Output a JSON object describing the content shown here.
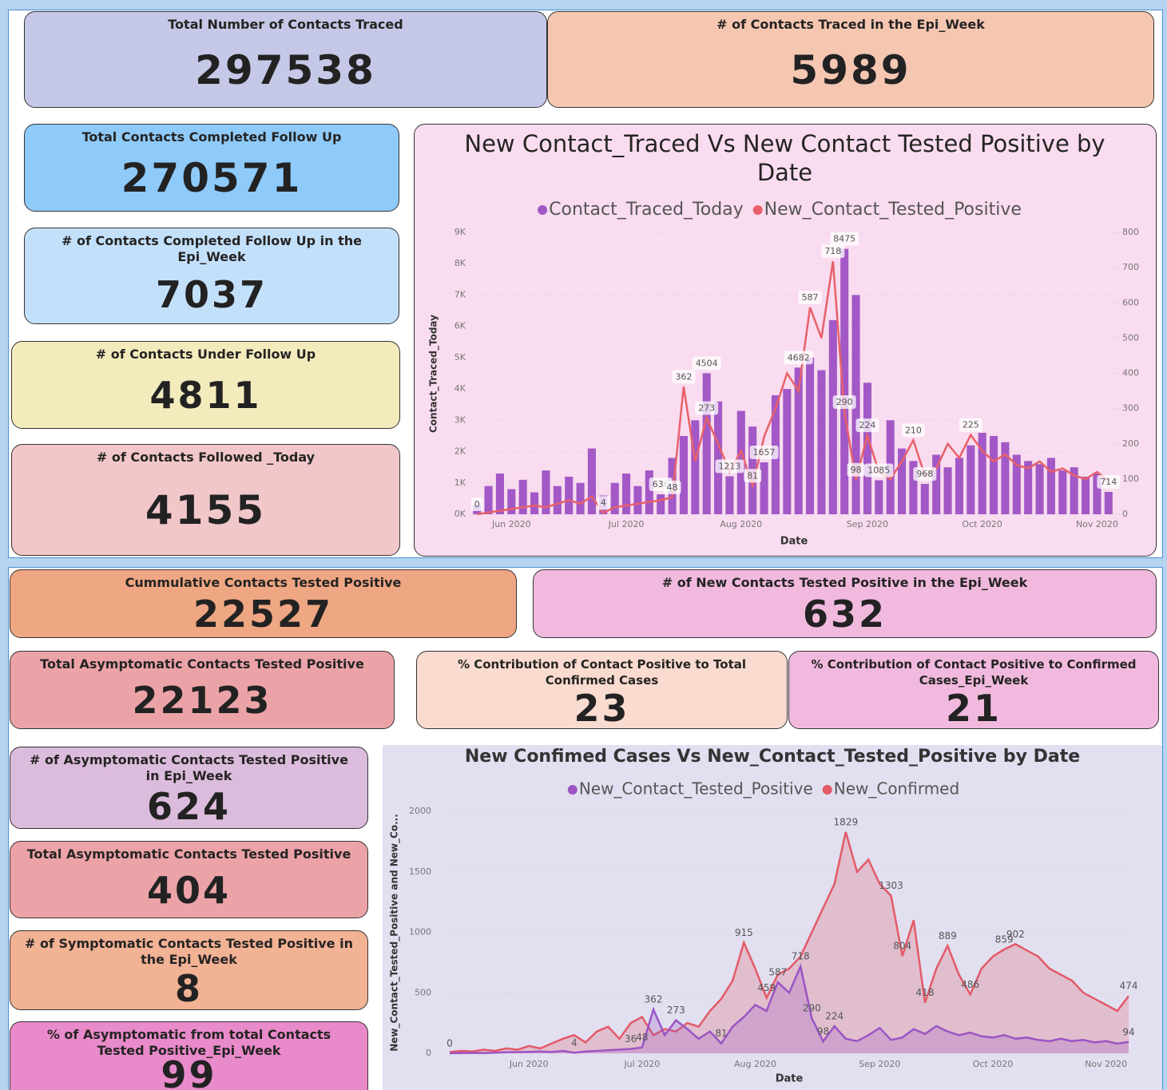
{
  "cards": [
    {
      "title": "Total Number of Contacts Traced",
      "value": 297538
    },
    {
      "title": "# of Contacts Traced in the Epi_Week",
      "value": 5989
    },
    {
      "title": "Total Contacts Completed Follow Up",
      "value": 270571
    },
    {
      "title": "# of Contacts Completed Follow Up in the Epi_Week",
      "value": 7037
    },
    {
      "title": "# of Contacts Under Follow Up",
      "value": 4811
    },
    {
      "title": "# of Contacts Followed _Today",
      "value": 4155
    },
    {
      "title": "Cummulative Contacts Tested Positive",
      "value": 22527
    },
    {
      "title": "# of New Contacts Tested Positive in the Epi_Week",
      "value": 632
    },
    {
      "title": "Total Asymptomatic Contacts Tested Positive",
      "value": 22123
    },
    {
      "title": "% Contribution of Contact Positive to Total Confirmed Cases",
      "value": 23
    },
    {
      "title": "% Contribution of Contact Positive to Confirmed Cases_Epi_Week",
      "value": 21
    },
    {
      "title": "# of Asymptomatic Contacts Tested Positive in Epi_Week",
      "value": 624
    },
    {
      "title": "Total Asymptomatic Contacts Tested Positive",
      "value": 404
    },
    {
      "title": "# of Symptomatic Contacts Tested Positive in the Epi_Week",
      "value": 8
    },
    {
      "title": "% of Asymptomatic from total Contacts Tested Positive_Epi_Week",
      "value": 99
    }
  ],
  "chart_data": [
    {
      "type": "combo",
      "title": "New Contact_Traced Vs New Contact Tested Positive by Date",
      "x_label": "Date",
      "y_label": "Contact_Traced_Today",
      "legend": "top",
      "grid": true,
      "categories": [
        null,
        null,
        null,
        "Jun 2020",
        null,
        null,
        null,
        null,
        null,
        null,
        null,
        null,
        null,
        "Jul 2020",
        null,
        null,
        null,
        null,
        null,
        null,
        null,
        null,
        null,
        "Aug 2020",
        null,
        null,
        null,
        null,
        null,
        null,
        null,
        null,
        null,
        null,
        "Sep 2020",
        null,
        null,
        null,
        null,
        null,
        null,
        null,
        null,
        null,
        "Oct 2020",
        null,
        null,
        null,
        null,
        null,
        null,
        null,
        null,
        null,
        "Nov 2020",
        null
      ],
      "ylim": [
        0,
        9000
      ],
      "yticks": [
        {
          "value": 0,
          "label": "0K"
        },
        {
          "value": 1000,
          "label": "1K"
        },
        {
          "value": 2000,
          "label": "2K"
        },
        {
          "value": 3000,
          "label": "3K"
        },
        {
          "value": 4000,
          "label": "4K"
        },
        {
          "value": 5000,
          "label": "5K"
        },
        {
          "value": 6000,
          "label": "6K"
        },
        {
          "value": 7000,
          "label": "7K"
        },
        {
          "value": 8000,
          "label": "8K"
        },
        {
          "value": 9000,
          "label": "9K"
        }
      ],
      "y2lim": [
        0,
        800
      ],
      "y2ticks": [
        0,
        100,
        200,
        300,
        400,
        500,
        600,
        700,
        800
      ],
      "series": [
        {
          "name": "Contact_Traced_Today",
          "color": "#a258c6",
          "values": [
            300,
            900,
            1300,
            800,
            1100,
            700,
            1400,
            900,
            1200,
            1000,
            2100,
            600,
            1000,
            1300,
            900,
            1400,
            636,
            1800,
            2500,
            3000,
            4504,
            3600,
            1213,
            3300,
            2800,
            1657,
            3800,
            4000,
            4682,
            5000,
            4600,
            6200,
            8475,
            7000,
            4200,
            1085,
            3000,
            2100,
            1700,
            968,
            1900,
            1500,
            1800,
            2200,
            2600,
            2500,
            2300,
            1900,
            1700,
            1600,
            1800,
            1400,
            1500,
            1200,
            1300,
            714
          ],
          "value_labels": [
            null,
            null,
            null,
            null,
            null,
            null,
            null,
            null,
            null,
            null,
            null,
            null,
            null,
            null,
            null,
            null,
            "636",
            null,
            null,
            null,
            "4504",
            null,
            "1213",
            null,
            null,
            "1657",
            null,
            null,
            "4682",
            null,
            null,
            null,
            "8475",
            null,
            null,
            "1085",
            null,
            null,
            null,
            "968",
            null,
            null,
            null,
            null,
            null,
            null,
            null,
            null,
            null,
            null,
            null,
            null,
            null,
            null,
            null,
            "714"
          ]
        },
        {
          "name": "New_Contact_Tested_Positive",
          "color": "#e8606a",
          "axis": "y2",
          "values": [
            0,
            5,
            10,
            15,
            20,
            25,
            20,
            30,
            40,
            30,
            50,
            4,
            20,
            25,
            30,
            35,
            40,
            48,
            362,
            150,
            273,
            200,
            120,
            180,
            81,
            220,
            300,
            400,
            350,
            587,
            500,
            718,
            290,
            98,
            224,
            120,
            100,
            150,
            210,
            110,
            130,
            200,
            160,
            225,
            180,
            150,
            170,
            140,
            130,
            150,
            120,
            130,
            110,
            100,
            120,
            94
          ],
          "value_labels": [
            "0",
            null,
            null,
            null,
            null,
            null,
            null,
            null,
            null,
            null,
            null,
            "4",
            null,
            null,
            null,
            null,
            null,
            "48",
            "362",
            null,
            "273",
            null,
            null,
            null,
            "81",
            null,
            null,
            null,
            null,
            "587",
            null,
            "718",
            "290",
            "98",
            "224",
            null,
            null,
            null,
            "210",
            null,
            null,
            null,
            null,
            "225",
            null,
            null,
            null,
            null,
            null,
            null,
            null,
            null,
            null,
            null,
            null,
            null
          ]
        }
      ]
    },
    {
      "type": "area",
      "title": "New Confimed Cases Vs New_Contact_Tested_Positive by Date",
      "x_label": "Date",
      "y_label": "New_Contact_Tested_Positive and New_Co...",
      "legend": "top",
      "grid": true,
      "categories": [
        null,
        null,
        null,
        null,
        null,
        null,
        null,
        "Jun 2020",
        null,
        null,
        null,
        null,
        null,
        null,
        null,
        null,
        null,
        "Jul 2020",
        null,
        null,
        null,
        null,
        null,
        null,
        null,
        null,
        null,
        "Aug 2020",
        null,
        null,
        null,
        null,
        null,
        null,
        null,
        null,
        null,
        null,
        "Sep 2020",
        null,
        null,
        null,
        null,
        null,
        null,
        null,
        null,
        null,
        "Oct 2020",
        null,
        null,
        null,
        null,
        null,
        null,
        null,
        null,
        null,
        "Nov 2020",
        null,
        null
      ],
      "ylim": [
        0,
        2000
      ],
      "yticks": [
        0,
        500,
        1000,
        1500,
        2000
      ],
      "series": [
        {
          "name": "New_Contact_Tested_Positive",
          "color": "#9b55c4",
          "values": [
            0,
            2,
            3,
            2,
            5,
            8,
            10,
            12,
            15,
            10,
            20,
            4,
            15,
            20,
            25,
            30,
            36,
            48,
            362,
            150,
            273,
            200,
            120,
            180,
            81,
            220,
            300,
            400,
            350,
            587,
            500,
            718,
            290,
            98,
            224,
            120,
            100,
            150,
            210,
            110,
            130,
            200,
            160,
            225,
            180,
            150,
            170,
            140,
            130,
            150,
            120,
            130,
            110,
            100,
            120,
            100,
            110,
            90,
            100,
            80,
            94
          ],
          "value_labels": [
            "0",
            null,
            null,
            null,
            null,
            null,
            null,
            null,
            null,
            null,
            null,
            "4",
            null,
            null,
            null,
            null,
            "36",
            "48",
            "362",
            null,
            "273",
            null,
            null,
            null,
            "81",
            null,
            null,
            null,
            null,
            "587",
            null,
            "718",
            "290",
            "98",
            "224",
            null,
            null,
            null,
            null,
            null,
            null,
            null,
            null,
            null,
            null,
            null,
            null,
            null,
            null,
            null,
            null,
            null,
            null,
            null,
            null,
            null,
            null,
            null,
            null,
            null,
            "94"
          ]
        },
        {
          "name": "New_Confirmed",
          "color": "#e35a68",
          "values": [
            10,
            20,
            15,
            30,
            20,
            40,
            30,
            60,
            40,
            80,
            120,
            150,
            90,
            180,
            220,
            120,
            250,
            300,
            150,
            200,
            180,
            250,
            220,
            350,
            450,
            600,
            915,
            700,
            459,
            650,
            700,
            800,
            1000,
            1200,
            1400,
            1829,
            1500,
            1600,
            1400,
            1303,
            804,
            1100,
            418,
            700,
            889,
            650,
            486,
            700,
            800,
            859,
            902,
            850,
            800,
            700,
            650,
            600,
            500,
            450,
            400,
            350,
            474
          ],
          "value_labels": [
            null,
            null,
            null,
            null,
            null,
            null,
            null,
            null,
            null,
            null,
            null,
            null,
            null,
            null,
            null,
            null,
            null,
            null,
            null,
            null,
            null,
            null,
            null,
            null,
            null,
            null,
            "915",
            null,
            "459",
            null,
            null,
            null,
            null,
            null,
            null,
            "1829",
            null,
            null,
            null,
            "1303",
            "804",
            null,
            "418",
            null,
            "889",
            null,
            "486",
            null,
            null,
            "859",
            "902",
            null,
            null,
            null,
            null,
            null,
            null,
            null,
            null,
            null,
            "474"
          ]
        }
      ]
    }
  ]
}
